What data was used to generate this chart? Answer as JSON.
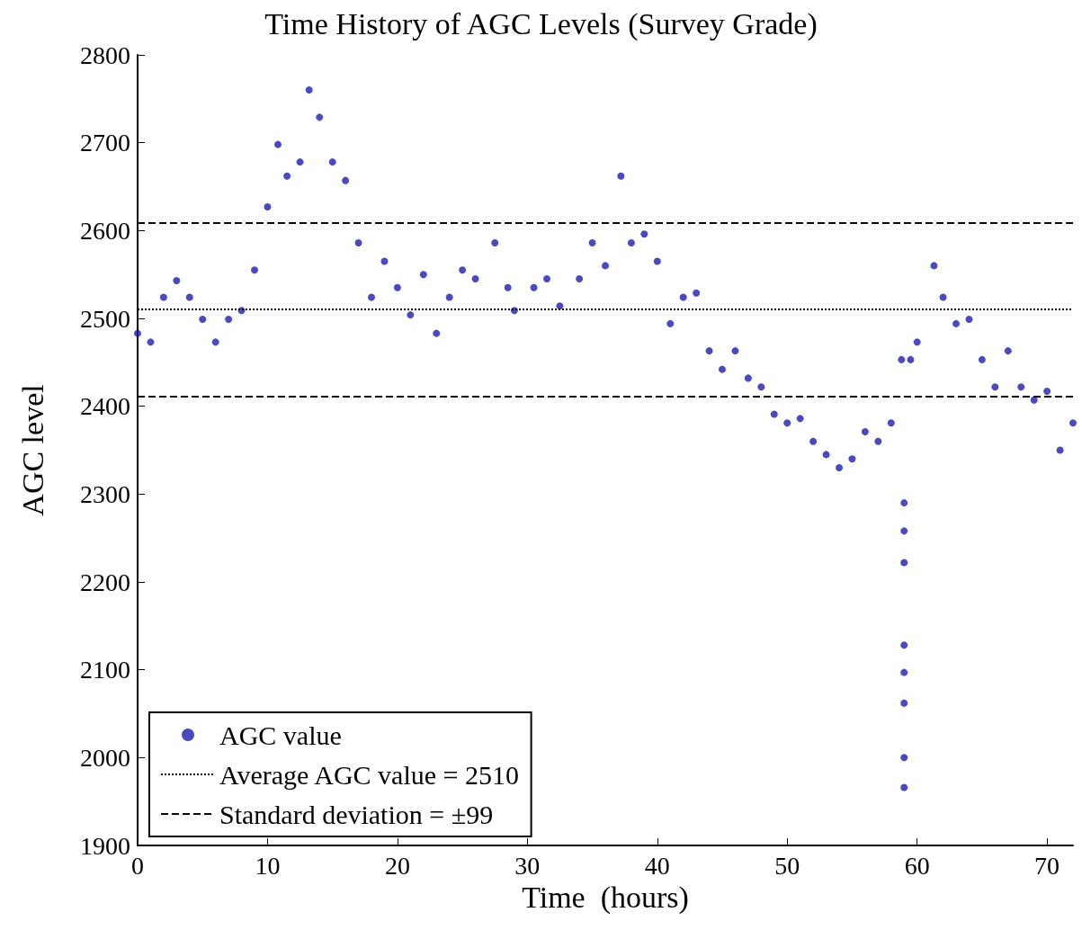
{
  "chart_data": {
    "type": "scatter",
    "title": "Time History of AGC Levels (Survey Grade)",
    "xlabel": "Time  (hours)",
    "ylabel": "AGC level",
    "x": [
      0,
      1,
      2,
      3,
      4,
      5,
      6,
      7,
      8,
      9,
      10,
      10.8,
      11.5,
      12.5,
      13.2,
      14,
      15,
      16,
      17,
      18,
      19,
      20,
      21,
      22,
      23,
      24,
      25,
      26,
      27.5,
      28.5,
      29,
      30.5,
      31.5,
      32.5,
      34,
      35,
      36,
      37.2,
      38,
      39,
      40,
      41,
      42,
      43,
      44,
      45,
      46,
      47,
      48,
      49,
      50,
      51,
      52,
      53,
      54,
      55,
      56,
      57,
      58,
      58.8,
      59,
      59,
      59,
      59,
      59,
      59,
      59,
      59,
      59.5,
      60,
      61.3,
      62,
      63,
      64,
      65,
      66,
      67,
      68,
      69,
      70,
      71,
      72
    ],
    "series": [
      {
        "name": "AGC value",
        "color": "#1c1cb0",
        "values": [
          2483,
          2473,
          2524,
          2543,
          2524,
          2499,
          2473,
          2499,
          2509,
          2555,
          2627,
          2698,
          2662,
          2678,
          2760,
          2729,
          2678,
          2657,
          2586,
          2524,
          2565,
          2535,
          2504,
          2550,
          2483,
          2524,
          2555,
          2545,
          2586,
          2535,
          2509,
          2535,
          2545,
          2514,
          2545,
          2586,
          2560,
          2662,
          2586,
          2596,
          2565,
          2494,
          2524,
          2529,
          2463,
          2442,
          2463,
          2432,
          2422,
          2391,
          2381,
          2386,
          2360,
          2345,
          2330,
          2340,
          2371,
          2360,
          2381,
          2453,
          2290,
          2222,
          2128,
          2097,
          2062,
          2000,
          1966,
          2258,
          2453,
          2473,
          2560,
          2524,
          2494,
          2499,
          2453,
          2422,
          2463,
          2422,
          2407,
          2417,
          2350,
          2381
        ]
      }
    ],
    "xlim": [
      0,
      72
    ],
    "ylim": [
      1900,
      2800
    ],
    "xticks": [
      0,
      10,
      20,
      30,
      40,
      50,
      60,
      70
    ],
    "yticks": [
      1900,
      2000,
      2100,
      2200,
      2300,
      2400,
      2500,
      2600,
      2700,
      2800
    ],
    "ref_lines": [
      {
        "axis": "y",
        "value": 2510,
        "label": "Average AGC value = 2510",
        "line_style": "dotted",
        "color": "#000000"
      },
      {
        "axis": "y",
        "value": 2609,
        "label": "Standard deviation = ±99",
        "line_style": "dashed",
        "color": "#000000"
      },
      {
        "axis": "y",
        "value": 2411,
        "line_style": "dashed",
        "color": "#000000"
      }
    ],
    "marker": "circle",
    "grid": false,
    "legend": "bottom left"
  }
}
